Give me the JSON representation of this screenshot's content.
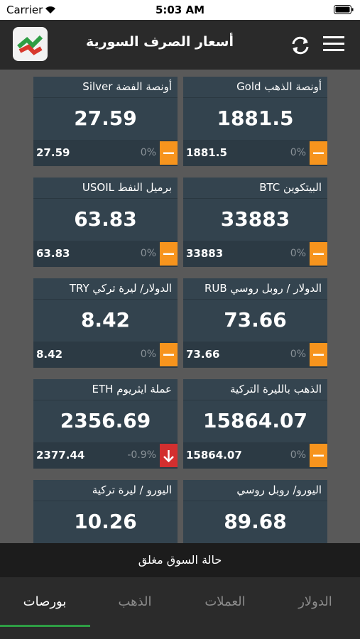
{
  "status_bar": {
    "carrier": "Carrier",
    "time": "5:03 AM"
  },
  "header": {
    "title": "أسعار الصرف السورية"
  },
  "cards": [
    {
      "title": "أونصة الذهب Gold",
      "value": "1881.5",
      "previous": "1881.5",
      "change": "0%",
      "trend": "flat"
    },
    {
      "title": "أونصة الفضة  Silver",
      "value": "27.59",
      "previous": "27.59",
      "change": "0%",
      "trend": "flat"
    },
    {
      "title": "البيتكوين BTC",
      "value": "33883",
      "previous": "33883",
      "change": "0%",
      "trend": "flat"
    },
    {
      "title": "برميل النفط USOIL",
      "value": "63.83",
      "previous": "63.83",
      "change": "0%",
      "trend": "flat"
    },
    {
      "title": "الدولار / روبل روسي RUB",
      "value": "73.66",
      "previous": "73.66",
      "change": "0%",
      "trend": "flat"
    },
    {
      "title": "الدولار/ ليرة تركي TRY",
      "value": "8.42",
      "previous": "8.42",
      "change": "0%",
      "trend": "flat"
    },
    {
      "title": "الذهب بالليرة التركية",
      "value": "15864.07",
      "previous": "15864.07",
      "change": "0%",
      "trend": "flat"
    },
    {
      "title": "عملة ايثريوم  ETH",
      "value": "2356.69",
      "previous": "2377.44",
      "change": "-0.9%",
      "trend": "down"
    },
    {
      "title": "اليورو/ روبل روسي",
      "value": "89.68"
    },
    {
      "title": "اليورو / ليرة تركية",
      "value": "10.26"
    }
  ],
  "market_status": "حالة السوق مغلق",
  "tabs": [
    "بورصات",
    "الذهب",
    "العملات",
    "الدولار"
  ],
  "active_tab": 0
}
